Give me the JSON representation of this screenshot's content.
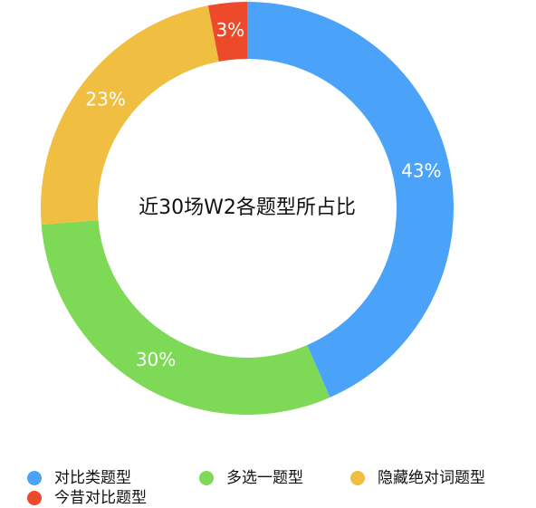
{
  "chart_data": {
    "type": "donut",
    "title": "近30场W2各题型所占比",
    "categories": [
      "对比类题型",
      "多选一题型",
      "隐藏绝对词题型",
      "今昔对比题型"
    ],
    "values": [
      43,
      30,
      23,
      3
    ],
    "value_labels": [
      "43%",
      "30%",
      "23%",
      "3%"
    ],
    "colors": [
      "#4aa3f8",
      "#7ed957",
      "#f0be41",
      "#ec4a2a"
    ]
  }
}
